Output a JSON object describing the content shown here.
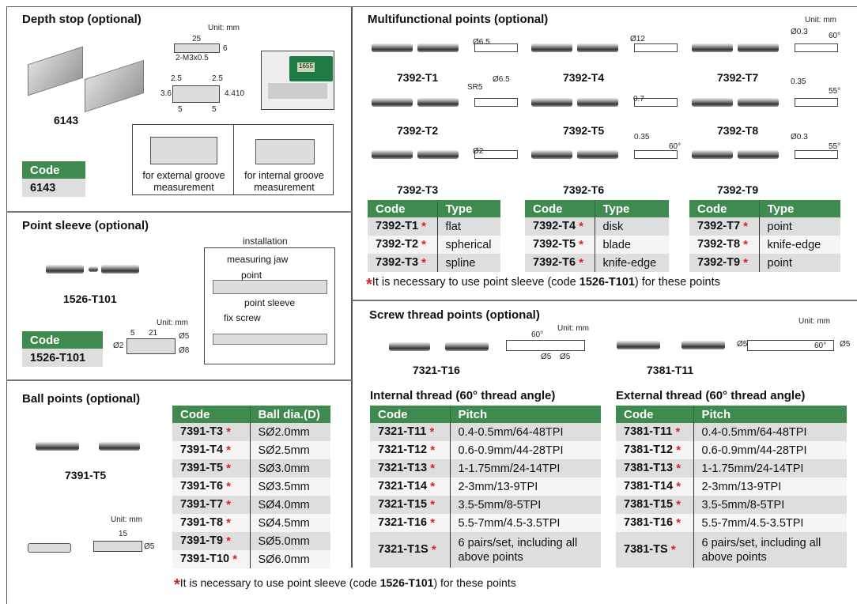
{
  "depth_stop": {
    "title": "Depth stop (optional)",
    "unit": "Unit: mm",
    "model": "6143",
    "dims": {
      "length": "25",
      "height": "6",
      "thread": "2-M3x0.5",
      "a": "2.5",
      "b": "2.5",
      "c": "3.6",
      "d": "4.4",
      "e": "10",
      "f": "5",
      "g": "5"
    },
    "caliper_display": "1655",
    "captions": [
      "for external groove measurement",
      "for internal groove measurement"
    ],
    "code_header": "Code",
    "code": "6143"
  },
  "point_sleeve": {
    "title": "Point sleeve (optional)",
    "model": "1526-T101",
    "installation": "installation",
    "callouts": [
      "measuring jaw",
      "point",
      "point sleeve",
      "fix screw"
    ],
    "unit": "Unit: mm",
    "dims": [
      "5",
      "21",
      "Ø2",
      "Ø5",
      "Ø8"
    ],
    "code_header": "Code",
    "code": "1526-T101"
  },
  "ball_points": {
    "title": "Ball points (optional)",
    "model": "7391-T5",
    "unit": "Unit: mm",
    "dims": [
      "15",
      "Ø5"
    ],
    "headers": [
      "Code",
      "Ball dia.(D)"
    ],
    "rows": [
      [
        "7391-T3",
        "SØ2.0mm"
      ],
      [
        "7391-T4",
        "SØ2.5mm"
      ],
      [
        "7391-T5",
        "SØ3.0mm"
      ],
      [
        "7391-T6",
        "SØ3.5mm"
      ],
      [
        "7391-T7",
        "SØ4.0mm"
      ],
      [
        "7391-T8",
        "SØ4.5mm"
      ],
      [
        "7391-T9",
        "SØ5.0mm"
      ],
      [
        "7391-T10",
        "SØ6.0mm"
      ]
    ]
  },
  "footnote": {
    "star": "*",
    "text_before": "It is necessary to use point sleeve (code ",
    "code": "1526-T101",
    "text_after": ") for these points"
  },
  "multifunctional": {
    "title": "Multifunctional points (optional)",
    "unit": "Unit: mm",
    "models": [
      "7392-T1",
      "7392-T4",
      "7392-T7",
      "7392-T2",
      "7392-T5",
      "7392-T8",
      "7392-T3",
      "7392-T6",
      "7392-T9"
    ],
    "dims": [
      "Ø6.5",
      "Ø12",
      "Ø0.3",
      "60°",
      "SR5",
      "Ø6.5",
      "0.7",
      "0.35",
      "55°",
      "Ø2",
      "0.35",
      "60°",
      "Ø0.3",
      "55°"
    ],
    "tables": [
      {
        "headers": [
          "Code",
          "Type"
        ],
        "rows": [
          [
            "7392-T1",
            "flat"
          ],
          [
            "7392-T2",
            "spherical"
          ],
          [
            "7392-T3",
            "spline"
          ]
        ]
      },
      {
        "headers": [
          "Code",
          "Type"
        ],
        "rows": [
          [
            "7392-T4",
            "disk"
          ],
          [
            "7392-T5",
            "blade"
          ],
          [
            "7392-T6",
            "knife-edge"
          ]
        ]
      },
      {
        "headers": [
          "Code",
          "Type"
        ],
        "rows": [
          [
            "7392-T7",
            "point"
          ],
          [
            "7392-T8",
            "knife-edge"
          ],
          [
            "7392-T9",
            "point"
          ]
        ]
      }
    ]
  },
  "screw_thread": {
    "title": "Screw thread points (optional)",
    "unit1": "Unit: mm",
    "unit2": "Unit: mm",
    "models": [
      "7321-T16",
      "7381-T11"
    ],
    "dims": [
      "60°",
      "Ø5",
      "Ø5",
      "Ø5",
      "60°",
      "Ø5"
    ],
    "internal": {
      "title": "Internal thread (60° thread angle)",
      "headers": [
        "Code",
        "Pitch"
      ],
      "rows": [
        [
          "7321-T11",
          "0.4-0.5mm/64-48TPI"
        ],
        [
          "7321-T12",
          "0.6-0.9mm/44-28TPI"
        ],
        [
          "7321-T13",
          "1-1.75mm/24-14TPI"
        ],
        [
          "7321-T14",
          "2-3mm/13-9TPI"
        ],
        [
          "7321-T15",
          "3.5-5mm/8-5TPI"
        ],
        [
          "7321-T16",
          "5.5-7mm/4.5-3.5TPI"
        ],
        [
          "7321-T1S",
          "6 pairs/set, including all above points"
        ]
      ]
    },
    "external": {
      "title": "External thread (60° thread angle)",
      "headers": [
        "Code",
        "Pitch"
      ],
      "rows": [
        [
          "7381-T11",
          "0.4-0.5mm/64-48TPI"
        ],
        [
          "7381-T12",
          "0.6-0.9mm/44-28TPI"
        ],
        [
          "7381-T13",
          "1-1.75mm/24-14TPI"
        ],
        [
          "7381-T14",
          "2-3mm/13-9TPI"
        ],
        [
          "7381-T15",
          "3.5-5mm/8-5TPI"
        ],
        [
          "7381-T16",
          "5.5-7mm/4.5-3.5TPI"
        ],
        [
          "7381-TS",
          "6 pairs/set, including all above points"
        ]
      ]
    }
  },
  "colors": {
    "header_green": "#3f8a4f",
    "asterisk": "#e02020",
    "row_gray": "#dedede"
  }
}
